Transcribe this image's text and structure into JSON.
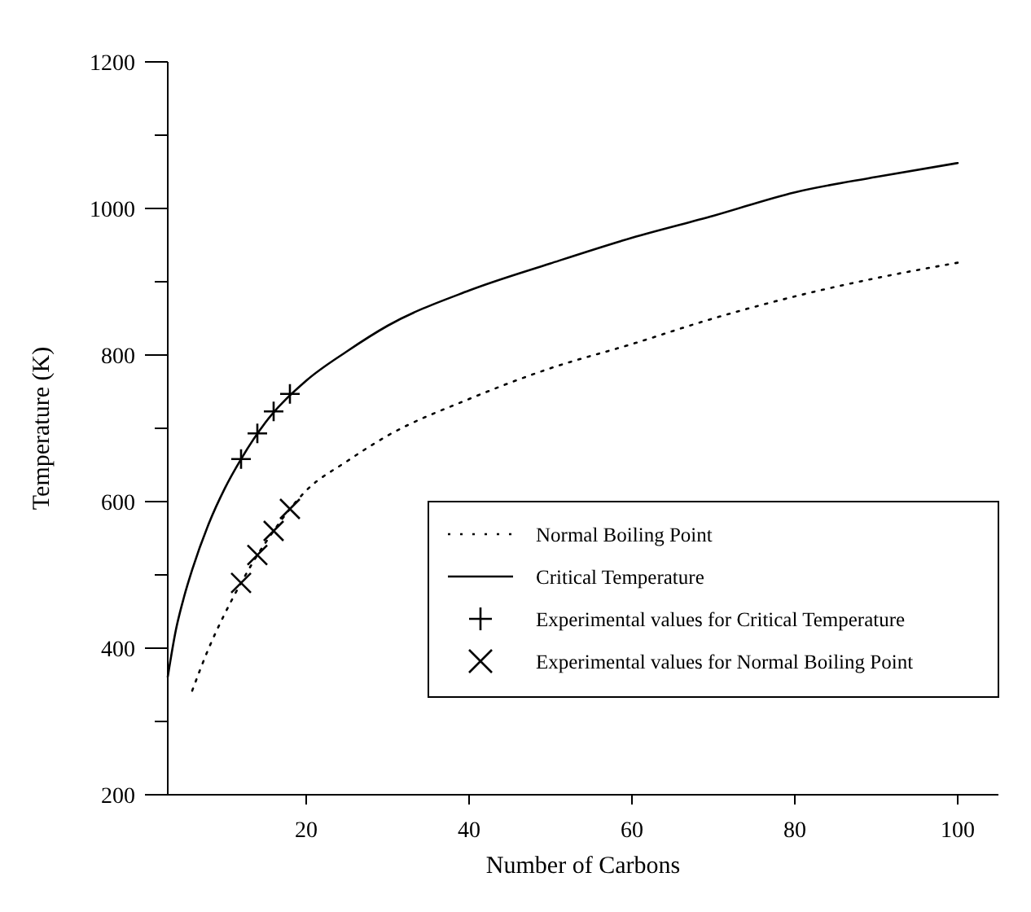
{
  "chart_data": {
    "type": "line",
    "xlabel": "Number of Carbons",
    "ylabel": "Temperature (K)",
    "xlim": [
      3,
      105
    ],
    "xticks": [
      20,
      40,
      60,
      80,
      100
    ],
    "ylim": [
      200,
      1200
    ],
    "yticks": [
      200,
      {
        "value": 300,
        "label": null
      },
      400,
      {
        "value": 500,
        "label": null
      },
      600,
      {
        "value": 700,
        "label": null
      },
      800,
      {
        "value": 900,
        "label": null
      },
      1000,
      {
        "value": 1100,
        "label": null
      },
      1200
    ],
    "grid": false,
    "legend": "bottom right",
    "series": [
      {
        "name": "Normal Boiling Point",
        "color": "#000000",
        "line_style": "dotted",
        "marker": "none",
        "x": [
          6,
          8,
          10,
          12,
          14,
          16,
          18,
          20,
          25,
          30,
          40,
          50,
          60,
          70,
          80,
          90,
          100
        ],
        "values": [
          342,
          399,
          447,
          489,
          527,
          560,
          590,
          615,
          655,
          690,
          740,
          782,
          815,
          850,
          880,
          905,
          926
        ]
      },
      {
        "name": "Critical Temperature",
        "color": "#000000",
        "line_style": "solid",
        "marker": "none",
        "x": [
          3,
          4,
          5,
          6,
          8,
          10,
          12,
          15,
          20,
          25,
          30,
          40,
          50,
          60,
          70,
          80,
          90,
          100
        ],
        "values": [
          361,
          425,
          470,
          507,
          569,
          618,
          658,
          708,
          765,
          805,
          840,
          888,
          925,
          960,
          990,
          1022,
          1043,
          1062
        ]
      },
      {
        "name": "Experimental values for Critical Temperature",
        "type": "scatter",
        "color": "#000000",
        "marker": "cross",
        "x": [
          12,
          14,
          16,
          18
        ],
        "values": [
          658,
          693,
          723,
          747
        ]
      },
      {
        "name": "Experimental values for Normal Boiling Point",
        "type": "scatter",
        "color": "#000000",
        "marker": "x",
        "x": [
          12,
          14,
          16,
          18
        ],
        "values": [
          489,
          527,
          560,
          590
        ]
      }
    ]
  }
}
